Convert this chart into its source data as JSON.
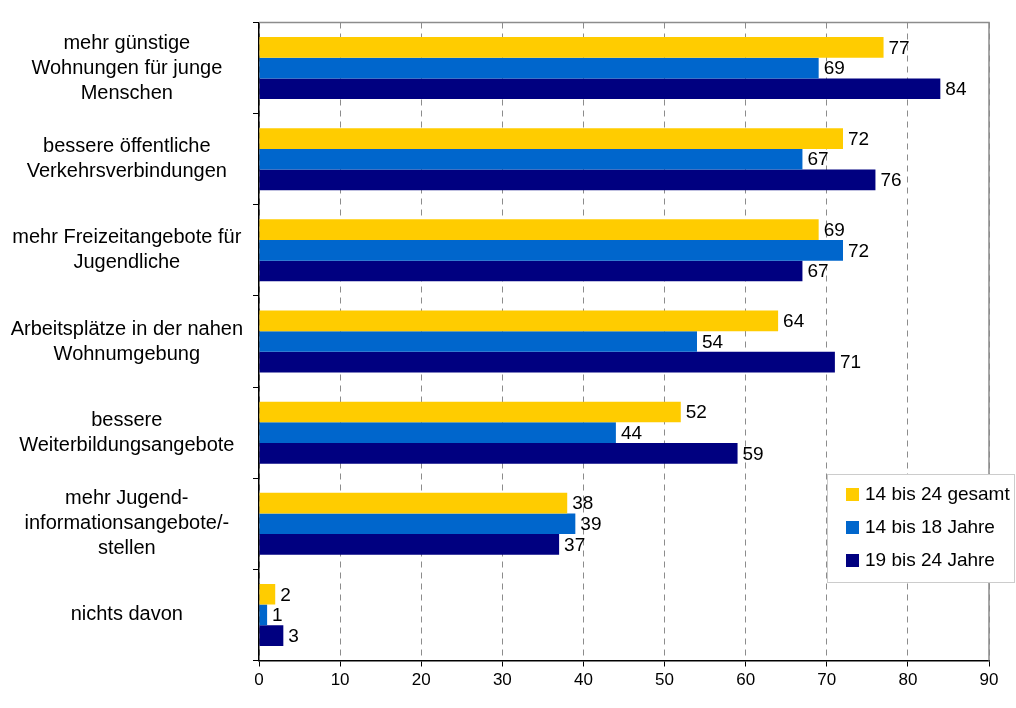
{
  "chart_data": {
    "type": "bar",
    "orientation": "horizontal",
    "categories": [
      "mehr günstige\nWohnungen für junge\nMenschen",
      "bessere öffentliche\nVerkehrsverbindungen",
      "mehr Freizeitangebote für\nJugendliche",
      "Arbeitsplätze in der nahen\nWohnumgebung",
      "bessere\nWeiterbildungsangebote",
      "mehr Jugend-\ninformationsangebote/-\nstellen",
      "nichts davon"
    ],
    "series": [
      {
        "name": "14 bis 24 gesamt",
        "color": "#ffcc00",
        "values": [
          77,
          72,
          69,
          64,
          52,
          38,
          2
        ]
      },
      {
        "name": "14 bis 18 Jahre",
        "color": "#0066cc",
        "values": [
          69,
          67,
          72,
          54,
          44,
          39,
          1
        ]
      },
      {
        "name": "19 bis 24 Jahre",
        "color": "#000080",
        "values": [
          84,
          76,
          67,
          71,
          59,
          37,
          3
        ]
      }
    ],
    "xlim": [
      0,
      90
    ],
    "xticks": [
      0,
      10,
      20,
      30,
      40,
      50,
      60,
      70,
      80,
      90
    ],
    "grid": "x",
    "legend": "bottom right",
    "data_labels": true
  }
}
